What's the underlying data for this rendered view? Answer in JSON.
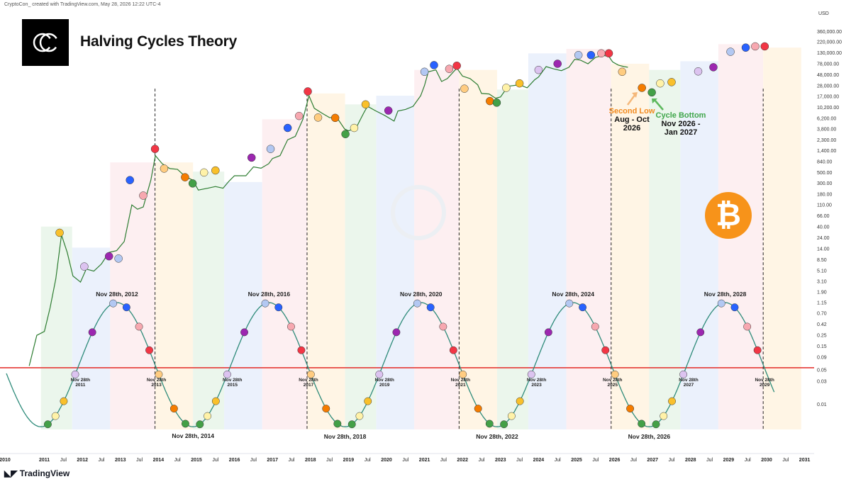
{
  "credit": "CryptoCon_ created with TradingView.com, May 28, 2026 12:22 UTC-4",
  "title": "Halving Cycles Theory",
  "brand": "TradingView",
  "currency": "USD",
  "annotations": {
    "second_low": {
      "head": "Second Low",
      "sub1": "Aug - Oct",
      "sub2": "2026"
    },
    "cycle_bottom": {
      "head": "Cycle Bottom",
      "sub1": "Nov 2026 -",
      "sub2": "Jan 2027"
    }
  },
  "icons": {
    "logo": "cryptocon-logo-icon",
    "bitcoin": "bitcoin-icon"
  },
  "colors": {
    "red": "#f23645",
    "orange": "#f57c00",
    "green": "#43a047",
    "light_yellow": "#fff2a8",
    "yellow": "#f9c02b",
    "purple": "#9c27b0",
    "blue": "#2962ff",
    "light_blue": "#b3c8f2",
    "lavender": "#dcc3f0",
    "pink": "#f7a8b0",
    "peach": "#ffcc80",
    "sine": "#2e8b7a",
    "price": "#2e7d32"
  },
  "chart_data": {
    "type": "line",
    "price_scale": "log",
    "y_ticks": [
      "360,000.00",
      "220,000.00",
      "130,000.00",
      "78,000.00",
      "48,000.00",
      "28,000.00",
      "17,000.00",
      "10,200.00",
      "6,200.00",
      "3,800.00",
      "2,300.00",
      "1,400.00",
      "840.00",
      "500.00",
      "300.00",
      "180.00",
      "110.00",
      "66.00",
      "40.00",
      "24.00",
      "14.00",
      "8.50",
      "5.10",
      "3.10",
      "1.90",
      "1.15",
      "0.70",
      "0.42",
      "0.25",
      "0.15",
      "0.09",
      "0.05",
      "0.03",
      "0.01"
    ],
    "x_ticks": [
      "2010",
      "2011",
      "Jul",
      "2012",
      "Jul",
      "2013",
      "Jul",
      "2014",
      "Jul",
      "2015",
      "Jul",
      "2016",
      "Jul",
      "2017",
      "Jul",
      "2018",
      "Jul",
      "2019",
      "Jul",
      "2020",
      "Jul",
      "2021",
      "Jul",
      "2022",
      "Jul",
      "2023",
      "Jul",
      "2024",
      "Jul",
      "2025",
      "Jul",
      "2026",
      "Jul",
      "2027",
      "Jul",
      "2028",
      "Jul",
      "2029",
      "Jul",
      "2030",
      "Jul",
      "2031"
    ],
    "x_range": [
      2010.0,
      2031.0
    ],
    "reference_line": 0.055,
    "price_series": [
      [
        2010.6,
        0.06
      ],
      [
        2010.8,
        0.25
      ],
      [
        2011.0,
        0.3
      ],
      [
        2011.15,
        0.9
      ],
      [
        2011.3,
        3.5
      ],
      [
        2011.45,
        27
      ],
      [
        2011.6,
        12
      ],
      [
        2011.75,
        4
      ],
      [
        2011.95,
        3
      ],
      [
        2012.1,
        5.5
      ],
      [
        2012.3,
        5
      ],
      [
        2012.5,
        7
      ],
      [
        2012.7,
        12
      ],
      [
        2012.9,
        13
      ],
      [
        2013.1,
        20
      ],
      [
        2013.3,
        110
      ],
      [
        2013.45,
        90
      ],
      [
        2013.6,
        100
      ],
      [
        2013.8,
        350
      ],
      [
        2013.92,
        1100
      ],
      [
        2014.1,
        750
      ],
      [
        2014.3,
        600
      ],
      [
        2014.5,
        580
      ],
      [
        2014.7,
        420
      ],
      [
        2014.9,
        350
      ],
      [
        2015.05,
        220
      ],
      [
        2015.3,
        240
      ],
      [
        2015.5,
        260
      ],
      [
        2015.7,
        240
      ],
      [
        2015.85,
        330
      ],
      [
        2016.0,
        430
      ],
      [
        2016.3,
        430
      ],
      [
        2016.5,
        650
      ],
      [
        2016.7,
        610
      ],
      [
        2016.9,
        750
      ],
      [
        2017.0,
        960
      ],
      [
        2017.2,
        1100
      ],
      [
        2017.4,
        2300
      ],
      [
        2017.6,
        2700
      ],
      [
        2017.8,
        6000
      ],
      [
        2017.96,
        18000
      ],
      [
        2018.1,
        10000
      ],
      [
        2018.3,
        8000
      ],
      [
        2018.5,
        6500
      ],
      [
        2018.7,
        6400
      ],
      [
        2018.9,
        3800
      ],
      [
        2019.0,
        3500
      ],
      [
        2019.2,
        4000
      ],
      [
        2019.4,
        8000
      ],
      [
        2019.5,
        11000
      ],
      [
        2019.7,
        9000
      ],
      [
        2019.95,
        7200
      ],
      [
        2020.2,
        5500
      ],
      [
        2020.3,
        8800
      ],
      [
        2020.5,
        9500
      ],
      [
        2020.7,
        11000
      ],
      [
        2020.9,
        18000
      ],
      [
        2021.0,
        29000
      ],
      [
        2021.1,
        55000
      ],
      [
        2021.3,
        60000
      ],
      [
        2021.45,
        35000
      ],
      [
        2021.6,
        40000
      ],
      [
        2021.85,
        65000
      ],
      [
        2022.0,
        45000
      ],
      [
        2022.2,
        40000
      ],
      [
        2022.4,
        30000
      ],
      [
        2022.5,
        20000
      ],
      [
        2022.7,
        19500
      ],
      [
        2022.87,
        16000
      ],
      [
        2023.0,
        17000
      ],
      [
        2023.2,
        28000
      ],
      [
        2023.5,
        30000
      ],
      [
        2023.7,
        26000
      ],
      [
        2023.9,
        38000
      ],
      [
        2024.0,
        43000
      ],
      [
        2024.2,
        70000
      ],
      [
        2024.4,
        63000
      ],
      [
        2024.6,
        58000
      ],
      [
        2024.8,
        68000
      ],
      [
        2024.95,
        98000
      ],
      [
        2025.1,
        95000
      ],
      [
        2025.3,
        80000
      ],
      [
        2025.5,
        108000
      ],
      [
        2025.7,
        118000
      ],
      [
        2025.85,
        112000
      ],
      [
        2025.95,
        87000
      ],
      [
        2026.1,
        75000
      ],
      [
        2026.25,
        70000
      ],
      [
        2026.35,
        68000
      ]
    ],
    "sine_curve": {
      "period_years": 4,
      "peak_dates": [
        2012.91,
        2016.91,
        2020.91,
        2024.91,
        2028.91
      ],
      "peak_value": 1.15,
      "trough_value": 0.0035
    },
    "cycle_labels": [
      {
        "date": 2012.91,
        "text": "Nov 28th, 2012",
        "pos": "top"
      },
      {
        "date": 2016.91,
        "text": "Nov 28th, 2016",
        "pos": "top"
      },
      {
        "date": 2020.91,
        "text": "Nov 28th, 2020",
        "pos": "top"
      },
      {
        "date": 2024.91,
        "text": "Nov 28th, 2024",
        "pos": "top"
      },
      {
        "date": 2028.91,
        "text": "Nov 28th, 2028",
        "pos": "top"
      },
      {
        "date": 2014.91,
        "text": "Nov 28th, 2014",
        "pos": "bottom"
      },
      {
        "date": 2018.91,
        "text": "Nov 28th, 2018",
        "pos": "bottom"
      },
      {
        "date": 2022.91,
        "text": "Nov 28th, 2022",
        "pos": "bottom"
      },
      {
        "date": 2026.91,
        "text": "Nov 28th, 2026",
        "pos": "bottom"
      }
    ],
    "crossing_labels": [
      {
        "date": 2011.91,
        "l1": "Nov 28th",
        "l2": "2011"
      },
      {
        "date": 2013.91,
        "l1": "Nov 28th",
        "l2": "2013"
      },
      {
        "date": 2015.91,
        "l1": "Nov 28th",
        "l2": "2015"
      },
      {
        "date": 2017.91,
        "l1": "Nov 28th",
        "l2": "2017"
      },
      {
        "date": 2019.91,
        "l1": "Nov 28th",
        "l2": "2019"
      },
      {
        "date": 2021.91,
        "l1": "Nov 28th",
        "l2": "2021"
      },
      {
        "date": 2023.91,
        "l1": "Nov 28th",
        "l2": "2023"
      },
      {
        "date": 2025.91,
        "l1": "Nov 28th",
        "l2": "2025"
      },
      {
        "date": 2027.91,
        "l1": "Nov 28th",
        "l2": "2027"
      },
      {
        "date": 2029.91,
        "l1": "Nov 28th",
        "l2": "2029"
      }
    ],
    "halving_lines": [
      2013.91,
      2017.91,
      2021.91,
      2025.91,
      2029.91
    ],
    "phase_bands": [
      {
        "from": 2010.91,
        "to": 2011.73,
        "color": "green",
        "top": 40
      },
      {
        "from": 2011.73,
        "to": 2012.73,
        "color": "blue",
        "top": 15
      },
      {
        "from": 2012.73,
        "to": 2013.91,
        "color": "red",
        "top": 800
      },
      {
        "from": 2013.91,
        "to": 2014.91,
        "color": "orange",
        "top": 800
      },
      {
        "from": 2014.91,
        "to": 2015.73,
        "color": "green",
        "top": 520
      },
      {
        "from": 2015.73,
        "to": 2016.73,
        "color": "blue",
        "top": 320
      },
      {
        "from": 2016.73,
        "to": 2017.91,
        "color": "red",
        "top": 6000
      },
      {
        "from": 2017.91,
        "to": 2018.91,
        "color": "orange",
        "top": 20000
      },
      {
        "from": 2018.91,
        "to": 2019.73,
        "color": "green",
        "top": 12000
      },
      {
        "from": 2019.73,
        "to": 2020.73,
        "color": "blue",
        "top": 18000
      },
      {
        "from": 2020.73,
        "to": 2021.91,
        "color": "red",
        "top": 60000
      },
      {
        "from": 2021.91,
        "to": 2022.91,
        "color": "orange",
        "top": 60000
      },
      {
        "from": 2022.91,
        "to": 2023.73,
        "color": "green",
        "top": 24000
      },
      {
        "from": 2023.73,
        "to": 2024.73,
        "color": "blue",
        "top": 130000
      },
      {
        "from": 2024.73,
        "to": 2025.91,
        "color": "red",
        "top": 160000
      },
      {
        "from": 2025.91,
        "to": 2026.91,
        "color": "orange",
        "top": 80000
      },
      {
        "from": 2026.91,
        "to": 2027.73,
        "color": "green",
        "top": 60000
      },
      {
        "from": 2027.73,
        "to": 2028.73,
        "color": "blue",
        "top": 90000
      },
      {
        "from": 2028.73,
        "to": 2029.91,
        "color": "red",
        "top": 200000
      },
      {
        "from": 2029.91,
        "to": 2030.91,
        "color": "orange",
        "top": 170000
      }
    ],
    "price_markers": [
      [
        2011.4,
        30,
        "yellow"
      ],
      [
        2012.05,
        6.2,
        "lavender"
      ],
      [
        2012.7,
        10,
        "purple"
      ],
      [
        2012.95,
        9,
        "light_blue"
      ],
      [
        2013.25,
        350,
        "blue"
      ],
      [
        2013.6,
        170,
        "pink"
      ],
      [
        2013.91,
        1500,
        "red"
      ],
      [
        2014.15,
        600,
        "peach"
      ],
      [
        2014.7,
        400,
        "orange"
      ],
      [
        2014.9,
        300,
        "green"
      ],
      [
        2015.2,
        500,
        "light_yellow"
      ],
      [
        2015.5,
        550,
        "yellow"
      ],
      [
        2016.45,
        1000,
        "purple"
      ],
      [
        2016.95,
        1500,
        "light_blue"
      ],
      [
        2017.4,
        4000,
        "blue"
      ],
      [
        2017.7,
        7000,
        "pink"
      ],
      [
        2017.93,
        22000,
        "red"
      ],
      [
        2018.2,
        6500,
        "peach"
      ],
      [
        2018.65,
        6400,
        "orange"
      ],
      [
        2018.92,
        3000,
        "green"
      ],
      [
        2019.15,
        4000,
        "light_yellow"
      ],
      [
        2019.45,
        12000,
        "yellow"
      ],
      [
        2020.05,
        9000,
        "purple"
      ],
      [
        2021.0,
        55000,
        "light_blue"
      ],
      [
        2021.25,
        75000,
        "blue"
      ],
      [
        2021.65,
        63000,
        "pink"
      ],
      [
        2021.85,
        73000,
        "red"
      ],
      [
        2022.05,
        25000,
        "peach"
      ],
      [
        2022.72,
        14000,
        "orange"
      ],
      [
        2022.9,
        13000,
        "green"
      ],
      [
        2023.15,
        26000,
        "light_yellow"
      ],
      [
        2023.5,
        32000,
        "yellow"
      ],
      [
        2024.0,
        60000,
        "lavender"
      ],
      [
        2024.5,
        80000,
        "purple"
      ],
      [
        2025.05,
        120000,
        "light_blue"
      ],
      [
        2025.38,
        120000,
        "blue"
      ],
      [
        2025.65,
        130000,
        "pink"
      ],
      [
        2025.85,
        130000,
        "red"
      ],
      [
        2026.2,
        55000,
        "peach"
      ],
      [
        2026.72,
        26000,
        "orange"
      ],
      [
        2026.98,
        21000,
        "green"
      ],
      [
        2027.2,
        32000,
        "light_yellow"
      ],
      [
        2027.5,
        34000,
        "yellow"
      ],
      [
        2028.2,
        56000,
        "lavender"
      ],
      [
        2028.6,
        68000,
        "purple"
      ],
      [
        2029.05,
        140000,
        "light_blue"
      ],
      [
        2029.45,
        170000,
        "blue"
      ],
      [
        2029.7,
        180000,
        "pink"
      ],
      [
        2029.95,
        180000,
        "red"
      ]
    ],
    "sine_marker_order": [
      "green",
      "light_yellow",
      "yellow",
      "lavender",
      "purple",
      "light_blue",
      "blue",
      "pink",
      "red",
      "peach",
      "orange",
      "green"
    ]
  }
}
